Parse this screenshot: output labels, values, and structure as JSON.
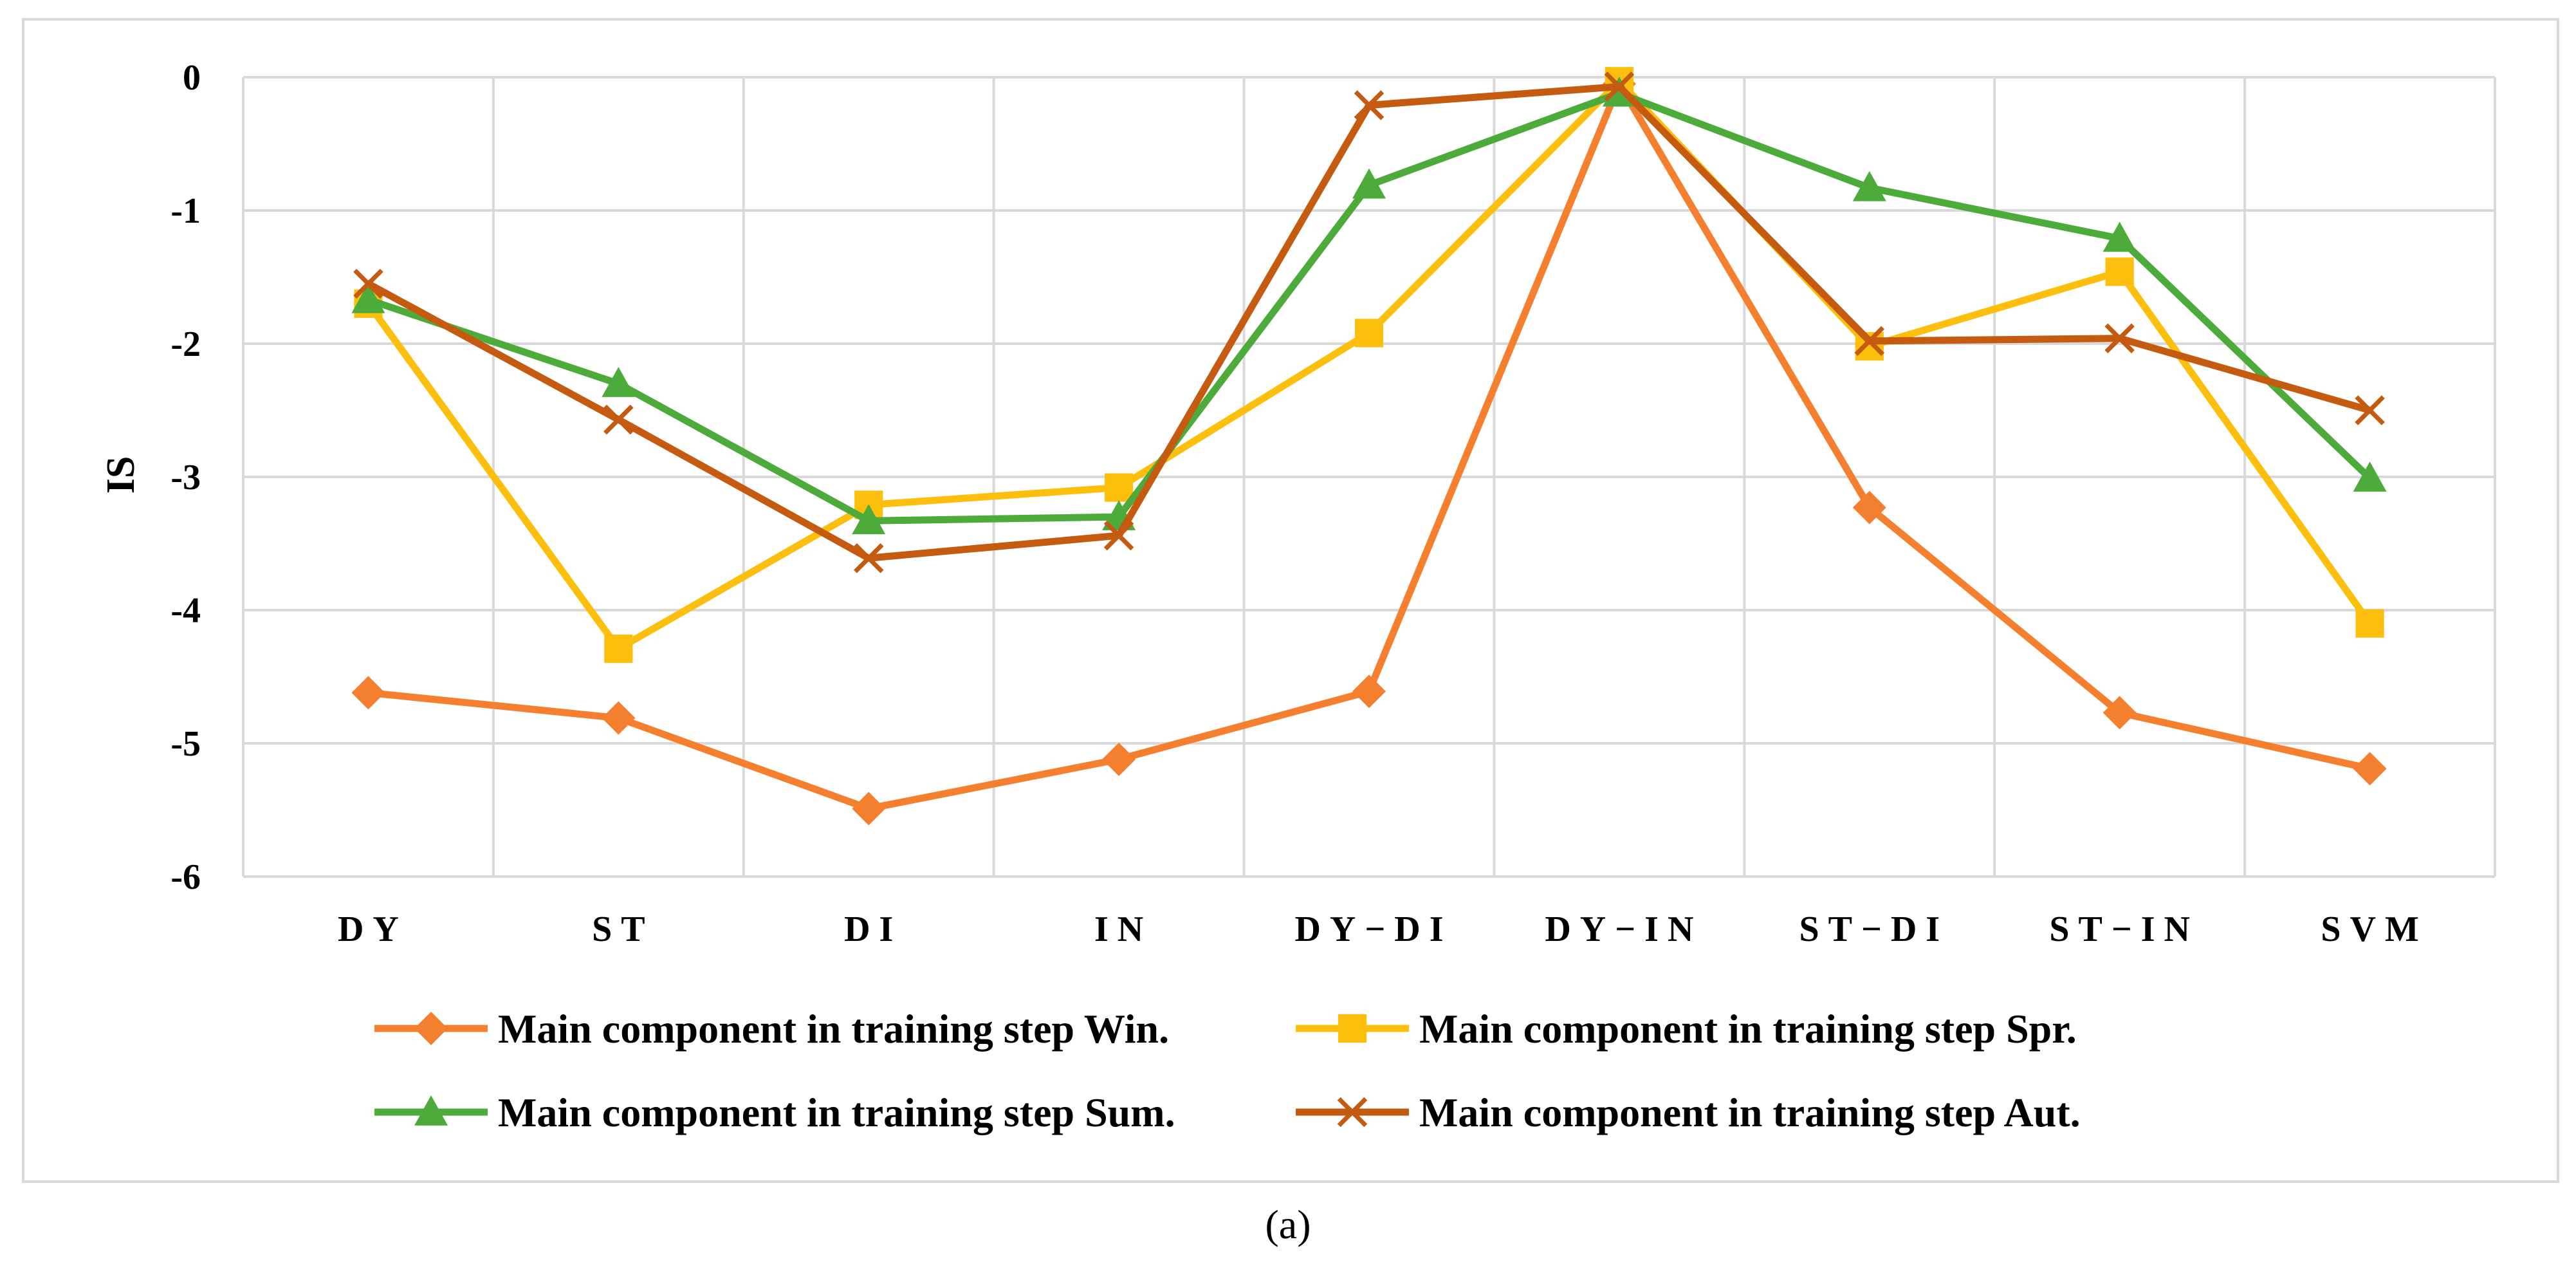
{
  "chart_data": {
    "type": "line",
    "caption": "(a)",
    "ylabel": "IS",
    "xlabel": "",
    "ylim": [
      -6,
      0
    ],
    "ytick_step": 1,
    "grid": true,
    "legend_position": "bottom",
    "categories": [
      "DY",
      "ST",
      "DI",
      "IN",
      "DY−DI",
      "DY−IN",
      "ST−DI",
      "ST−IN",
      "SVM"
    ],
    "series": [
      {
        "name": "Main component in training step Win.",
        "color": "#F4802F",
        "marker": "diamond",
        "values": [
          -4.62,
          -4.81,
          -5.49,
          -5.12,
          -4.61,
          -0.05,
          -3.23,
          -4.77,
          -5.19
        ]
      },
      {
        "name": "Main component in training step Spr.",
        "color": "#FDBF0D",
        "marker": "square",
        "values": [
          -1.7,
          -4.29,
          -3.21,
          -3.08,
          -1.92,
          -0.03,
          -2.02,
          -1.46,
          -4.1
        ]
      },
      {
        "name": "Main component in training step Sum.",
        "color": "#4DAB3C",
        "marker": "triangle",
        "values": [
          -1.67,
          -2.3,
          -3.33,
          -3.3,
          -0.81,
          -0.12,
          -0.83,
          -1.21,
          -3.01
        ]
      },
      {
        "name": "Main component in training step Aut.",
        "color": "#C55A11",
        "marker": "x",
        "values": [
          -1.55,
          -2.57,
          -3.61,
          -3.44,
          -0.21,
          -0.07,
          -1.98,
          -1.96,
          -2.5
        ]
      }
    ]
  }
}
